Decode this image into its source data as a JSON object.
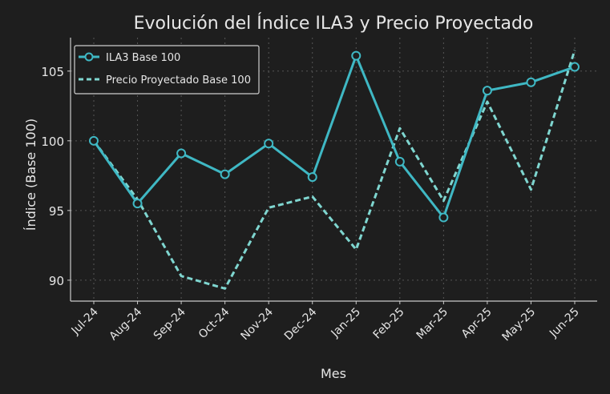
{
  "chart_data": {
    "type": "line",
    "title": "Evolución del Índice ILA3 y Precio Proyectado",
    "xlabel": "Mes",
    "ylabel": "Índice (Base 100)",
    "categories": [
      "Jul-24",
      "Aug-24",
      "Sep-24",
      "Oct-24",
      "Nov-24",
      "Dec-24",
      "Jan-25",
      "Feb-25",
      "Mar-25",
      "Apr-25",
      "May-25",
      "Jun-25"
    ],
    "yticks": [
      90,
      95,
      100,
      105
    ],
    "ylim": [
      88.5,
      107.4
    ],
    "grid": true,
    "legend_position": "top-left",
    "series": [
      {
        "name": "ILA3 Base 100",
        "style": "solid-marker",
        "color": "#3fb8c4",
        "values": [
          100.0,
          95.5,
          99.1,
          97.6,
          99.8,
          97.4,
          106.1,
          98.5,
          94.5,
          103.6,
          104.2,
          105.3
        ]
      },
      {
        "name": "Precio Proyectado Base 100",
        "style": "dashed",
        "color": "#7fd6d0",
        "values": [
          100.0,
          95.8,
          90.3,
          89.4,
          95.2,
          96.0,
          92.2,
          100.9,
          95.7,
          102.8,
          96.5,
          106.5
        ]
      }
    ]
  }
}
